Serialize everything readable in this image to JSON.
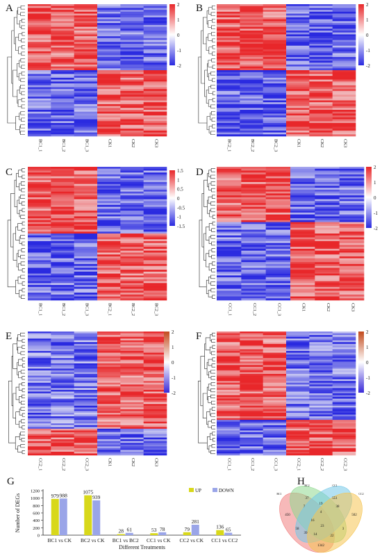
{
  "panels": {
    "A": {
      "letter": "A",
      "legend": {
        "ticks": [
          "2",
          "1",
          "0",
          "-1",
          "-2"
        ],
        "min": -2,
        "max": 2
      },
      "samples": [
        "BC1_1",
        "BC1_2",
        "BC1_3",
        "CK1",
        "CK2",
        "CK3"
      ],
      "up_fraction": 0.5
    },
    "B": {
      "letter": "B",
      "legend": {
        "ticks": [
          "2",
          "1",
          "0",
          "-1",
          "-2"
        ],
        "min": -2,
        "max": 2
      },
      "samples": [
        "BC2_1",
        "BC2_2",
        "BC2_3",
        "CK1",
        "CK2",
        "CK3"
      ],
      "up_fraction": 0.5
    },
    "C": {
      "letter": "C",
      "legend": {
        "ticks": [
          "1.5",
          "1",
          "0.5",
          "0",
          "-0.5",
          "-1",
          "-1.5"
        ],
        "min": -1.5,
        "max": 1.5
      },
      "samples": [
        "BC1_1",
        "BC1_2",
        "BC1_3",
        "BC2_1",
        "BC2_2",
        "BC2_3"
      ],
      "up_fraction": 0.5
    },
    "D": {
      "letter": "D",
      "legend": {
        "ticks": [
          "2",
          "1",
          "0",
          "-1",
          "-2"
        ],
        "min": -2,
        "max": 2
      },
      "samples": [
        "CC1_1",
        "CC1_2",
        "CC1_3",
        "CK1",
        "CK2",
        "CK3"
      ],
      "up_fraction": 0.42
    },
    "E": {
      "letter": "E",
      "legend": {
        "ticks": [
          "2",
          "1",
          "0",
          "-1",
          "-2"
        ],
        "min": -2,
        "max": 2
      },
      "samples": [
        "CC2_1",
        "CC2_2",
        "CC2_3",
        "CK1",
        "CK2",
        "CK3"
      ],
      "up_fraction": 0.78
    },
    "F": {
      "letter": "F",
      "legend": {
        "ticks": [
          "2",
          "1",
          "0",
          "-1",
          "-2"
        ],
        "min": -2,
        "max": 2
      },
      "samples": [
        "CC1_1",
        "CC1_2",
        "CC1_3",
        "CC2_1",
        "CC2_2",
        "CC2_3"
      ],
      "up_fraction": 0.72
    }
  },
  "colors": {
    "high": "#e8272a",
    "mid": "#f4f4f6",
    "low": "#2a2ae0",
    "up": "#d8d81a",
    "down": "#9aa5e8",
    "e_high": "#c24a1c",
    "e_low": "#3a2ad8"
  },
  "chart_data": {
    "type": "bar",
    "letter": "G",
    "categories": [
      "BC1 vs CK",
      "BC2 vs CK",
      "BC1 vs BC2",
      "CC1 vs CK",
      "CC2 vs CK",
      "CC1 vs CC2"
    ],
    "series": [
      {
        "name": "UP",
        "values": [
          979,
          1075,
          28,
          53,
          79,
          136
        ]
      },
      {
        "name": "DOWN",
        "values": [
          988,
          939,
          61,
          78,
          281,
          65
        ]
      }
    ],
    "data_labels": [
      [
        "979",
        "988"
      ],
      [
        "1075",
        "939"
      ],
      [
        "28",
        "61"
      ],
      [
        "53",
        "78"
      ],
      [
        "79",
        "281"
      ],
      [
        "136",
        "65"
      ]
    ],
    "xlabel": "Different Treatments",
    "ylabel": "Number of DEGs",
    "yticks": [
      "0",
      "200",
      "400",
      "600",
      "800",
      "1000",
      "1200"
    ],
    "ylim": [
      0,
      1200
    ],
    "legend_position": "top-right"
  },
  "venn": {
    "letter": "H",
    "set_labels": [
      "BC1",
      "BC2",
      "CC1",
      "CC2"
    ],
    "regions": [
      "37",
      "551",
      "450",
      "502",
      "7",
      "19",
      "38",
      "58",
      "4",
      "16",
      "39",
      "23",
      "3",
      "14",
      "22",
      "1342"
    ],
    "colors": [
      "#f08080",
      "#8fd88f",
      "#74c8e8",
      "#f5c452"
    ]
  }
}
